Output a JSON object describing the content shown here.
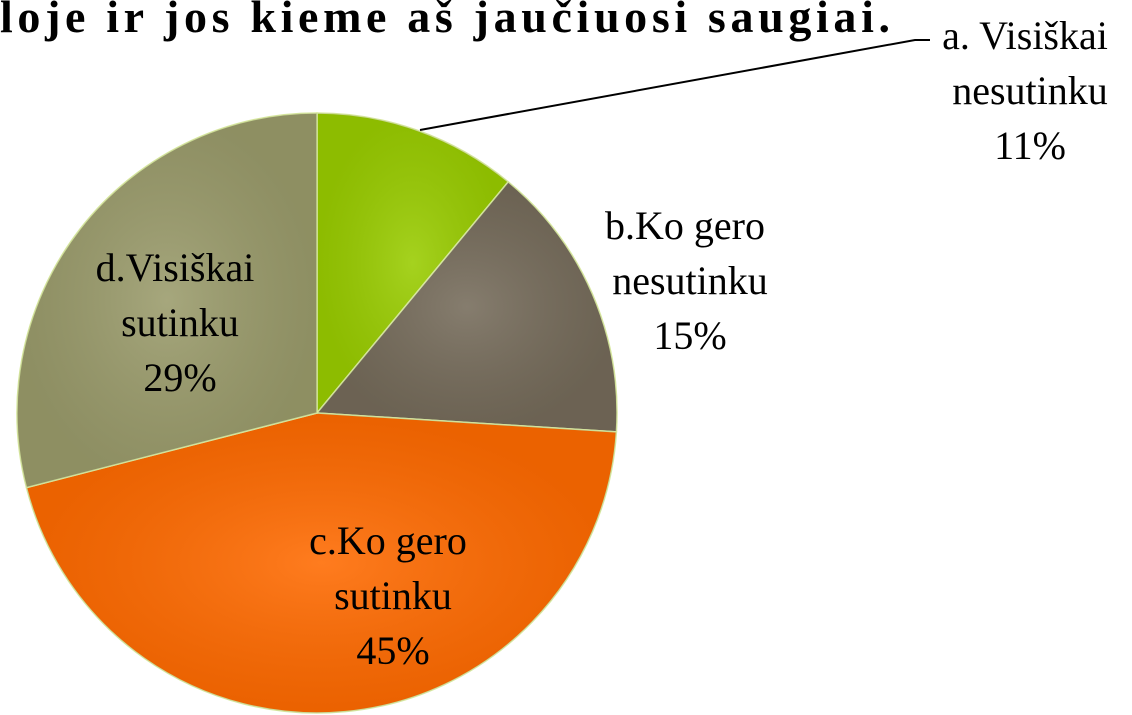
{
  "chart_data": {
    "type": "pie",
    "title": "loje ir jos kieme aš jaučiuosi saugiai.",
    "categories": [
      "a. Visiškai nesutinku",
      "b.Ko gero nesutinku",
      "c.Ko gero sutinku",
      "d.Visiškai sutinku"
    ],
    "values": [
      11,
      15,
      45,
      29
    ],
    "value_labels": [
      "11%",
      "15%",
      "45%",
      "29%"
    ],
    "colors": [
      "#99cc00",
      "#756b5a",
      "#ff6a00",
      "#9a9b6b"
    ]
  }
}
